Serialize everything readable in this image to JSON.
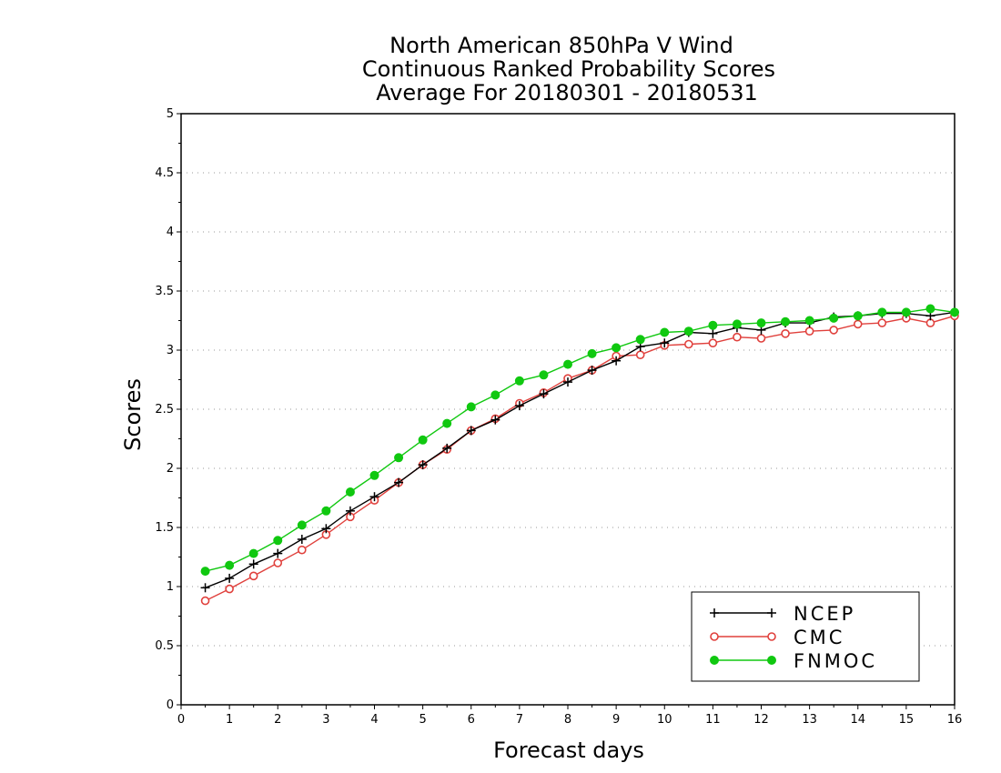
{
  "chart_data": {
    "type": "line",
    "title_lines": [
      "North American 850hPa V Wind",
      "Continuous Ranked Probability Scores",
      "Average For 20180301 - 20180531"
    ],
    "xlabel": "Forecast days",
    "ylabel": "Scores",
    "xlim": [
      0,
      16
    ],
    "ylim": [
      0,
      5
    ],
    "x_ticks": [
      "0",
      "1",
      "2",
      "3",
      "4",
      "5",
      "6",
      "7",
      "8",
      "9",
      "10",
      "11",
      "12",
      "13",
      "14",
      "15",
      "16"
    ],
    "y_ticks": [
      "0",
      "0.5",
      "1",
      "1.5",
      "2",
      "2.5",
      "3",
      "3.5",
      "4",
      "4.5",
      "5"
    ],
    "grid": "horizontal-dotted",
    "legend_position": "bottom-right",
    "x": [
      0.5,
      1,
      1.5,
      2,
      2.5,
      3,
      3.5,
      4,
      4.5,
      5,
      5.5,
      6,
      6.5,
      7,
      7.5,
      8,
      8.5,
      9,
      9.5,
      10,
      10.5,
      11,
      11.5,
      12,
      12.5,
      13,
      13.5,
      14,
      14.5,
      15,
      15.5,
      16
    ],
    "series": [
      {
        "name": "NCEP",
        "color": "#000000",
        "marker": "plus",
        "values": [
          0.99,
          1.07,
          1.19,
          1.28,
          1.4,
          1.49,
          1.64,
          1.76,
          1.88,
          2.03,
          2.17,
          2.32,
          2.41,
          2.53,
          2.63,
          2.73,
          2.83,
          2.91,
          3.03,
          3.06,
          3.15,
          3.14,
          3.19,
          3.17,
          3.23,
          3.23,
          3.28,
          3.29,
          3.31,
          3.31,
          3.29,
          3.32
        ]
      },
      {
        "name": "CMC",
        "color": "#e0403c",
        "marker": "open-circle",
        "values": [
          0.88,
          0.98,
          1.09,
          1.2,
          1.31,
          1.44,
          1.59,
          1.73,
          1.88,
          2.03,
          2.16,
          2.32,
          2.42,
          2.55,
          2.64,
          2.76,
          2.83,
          2.95,
          2.96,
          3.04,
          3.05,
          3.06,
          3.11,
          3.1,
          3.14,
          3.16,
          3.17,
          3.22,
          3.23,
          3.27,
          3.23,
          3.29
        ]
      },
      {
        "name": "FNMOC",
        "color": "#10c810",
        "marker": "filled-circle",
        "values": [
          1.13,
          1.18,
          1.28,
          1.39,
          1.52,
          1.64,
          1.8,
          1.94,
          2.09,
          2.24,
          2.38,
          2.52,
          2.62,
          2.74,
          2.79,
          2.88,
          2.97,
          3.02,
          3.09,
          3.15,
          3.16,
          3.21,
          3.22,
          3.23,
          3.24,
          3.25,
          3.27,
          3.29,
          3.32,
          3.32,
          3.35,
          3.32
        ]
      }
    ]
  }
}
